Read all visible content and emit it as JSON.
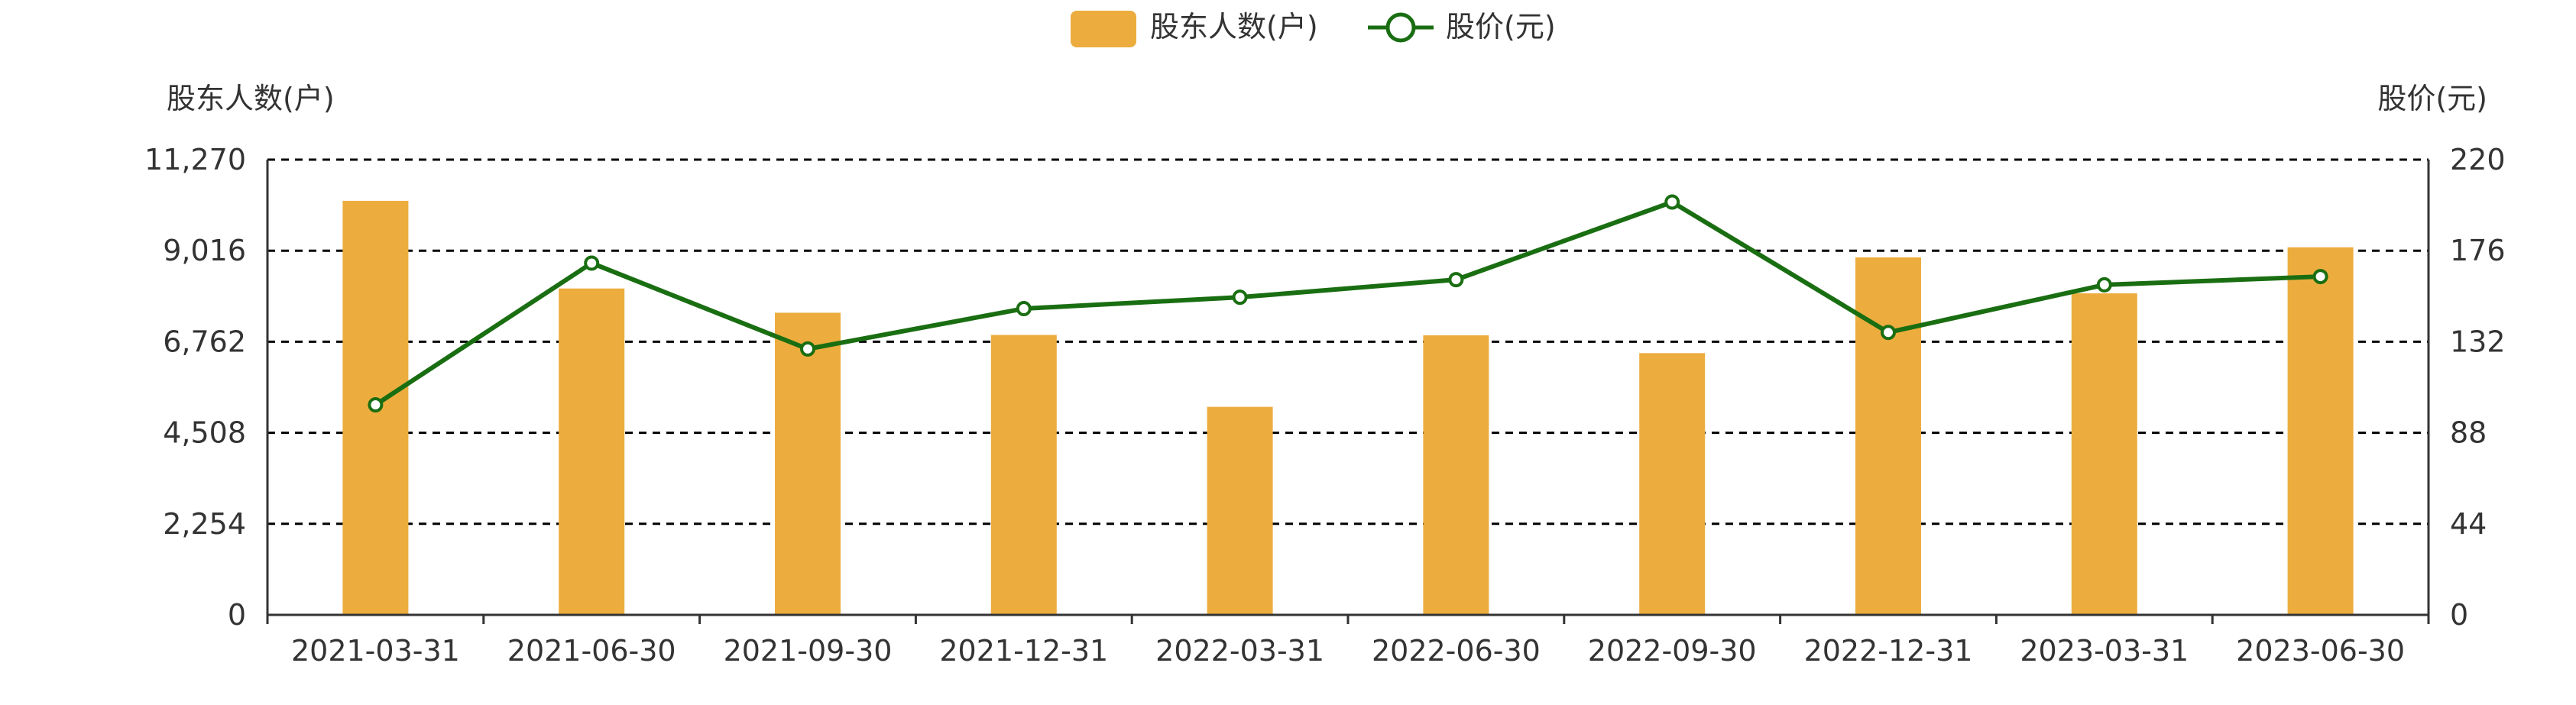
{
  "chart_data": {
    "type": "bar",
    "legend": [
      {
        "name": "股东人数(户)",
        "kind": "bar",
        "color": "#ECAD3E"
      },
      {
        "name": "股价(元)",
        "kind": "line",
        "color": "#1A6E12"
      }
    ],
    "legend_position": "top-center",
    "categories": [
      "2021-03-31",
      "2021-06-30",
      "2021-09-30",
      "2021-12-31",
      "2022-03-31",
      "2022-06-30",
      "2022-09-30",
      "2022-12-31",
      "2023-03-31",
      "2023-06-30"
    ],
    "series": [
      {
        "name": "股东人数(户)",
        "type": "bar",
        "axis": "left",
        "color": "#ECAD3E",
        "values": [
          10250,
          8080,
          7480,
          6930,
          5150,
          6920,
          6480,
          8850,
          7960,
          9100
        ]
      },
      {
        "name": "股价(元)",
        "type": "line",
        "axis": "right",
        "color": "#1A6E12",
        "values": [
          101.5,
          170.0,
          128.5,
          148.0,
          153.5,
          162.0,
          199.5,
          136.5,
          159.5,
          163.5
        ]
      }
    ],
    "y_left": {
      "label": "股东人数(户)",
      "range": [
        0,
        11270
      ],
      "ticks": [
        0,
        2254,
        4508,
        6762,
        9016,
        11270
      ],
      "tick_labels": [
        "0",
        "2,254",
        "4,508",
        "6,762",
        "9,016",
        "11,270"
      ]
    },
    "y_right": {
      "label": "股价(元)",
      "range": [
        0,
        220
      ],
      "ticks": [
        0,
        44,
        88,
        132,
        176,
        220
      ],
      "tick_labels": [
        "0",
        "44",
        "88",
        "132",
        "176",
        "220"
      ]
    },
    "grid": true
  }
}
